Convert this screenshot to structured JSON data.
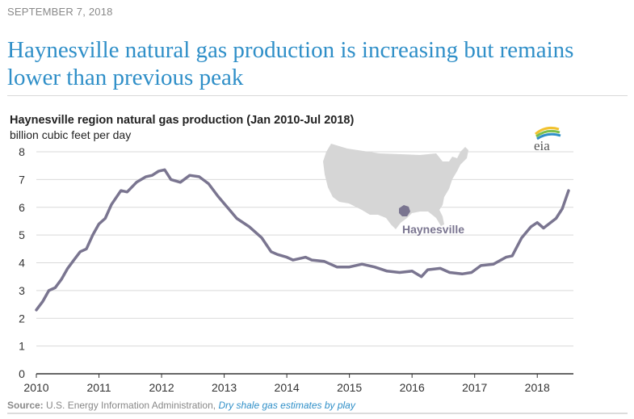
{
  "article": {
    "date": "SEPTEMBER 7, 2018",
    "headline": "Haynesville natural gas production is increasing but remains lower than previous peak"
  },
  "logo": {
    "text": "eia"
  },
  "map": {
    "label": "Haynesville",
    "region_color": "#7a7590",
    "us_color": "#d6d6d6"
  },
  "source": {
    "label": "Source:",
    "text": " U.S. Energy Information Administration, ",
    "link_text": "Dry shale gas estimates by play"
  },
  "colors": {
    "line": "#7a7590",
    "grid": "#d9d9d9",
    "headline": "#2f8fc8"
  },
  "chart_data": {
    "type": "line",
    "title": "Haynesville region natural gas production (Jan 2010-Jul 2018)",
    "ylabel": "billion cubic feet per day",
    "xlabel": "",
    "ylim": [
      0,
      8
    ],
    "xlim": [
      2010,
      2018.5
    ],
    "yticks": [
      "0",
      "1",
      "2",
      "3",
      "4",
      "5",
      "6",
      "7",
      "8"
    ],
    "xticks": [
      "2010",
      "2011",
      "2012",
      "2013",
      "2014",
      "2015",
      "2016",
      "2017",
      "2018"
    ],
    "grid": true,
    "series": [
      {
        "name": "Haynesville",
        "x": [
          2010.0,
          2010.1,
          2010.2,
          2010.3,
          2010.4,
          2010.5,
          2010.6,
          2010.7,
          2010.8,
          2010.9,
          2011.0,
          2011.1,
          2011.2,
          2011.35,
          2011.45,
          2011.6,
          2011.75,
          2011.85,
          2011.95,
          2012.05,
          2012.15,
          2012.3,
          2012.45,
          2012.6,
          2012.75,
          2012.9,
          2013.05,
          2013.2,
          2013.4,
          2013.6,
          2013.75,
          2013.85,
          2014.0,
          2014.1,
          2014.3,
          2014.4,
          2014.6,
          2014.8,
          2015.0,
          2015.2,
          2015.4,
          2015.6,
          2015.8,
          2016.0,
          2016.15,
          2016.25,
          2016.45,
          2016.6,
          2016.8,
          2016.95,
          2017.1,
          2017.3,
          2017.5,
          2017.6,
          2017.75,
          2017.9,
          2018.0,
          2018.1,
          2018.3,
          2018.4,
          2018.5
        ],
        "values": [
          2.3,
          2.6,
          3.0,
          3.1,
          3.4,
          3.8,
          4.1,
          4.4,
          4.5,
          5.0,
          5.4,
          5.6,
          6.1,
          6.6,
          6.55,
          6.9,
          7.1,
          7.15,
          7.3,
          7.35,
          7.0,
          6.9,
          7.15,
          7.1,
          6.85,
          6.4,
          6.0,
          5.6,
          5.3,
          4.9,
          4.4,
          4.3,
          4.2,
          4.1,
          4.2,
          4.1,
          4.05,
          3.85,
          3.85,
          3.95,
          3.85,
          3.7,
          3.65,
          3.7,
          3.5,
          3.75,
          3.8,
          3.65,
          3.6,
          3.65,
          3.9,
          3.95,
          4.2,
          4.25,
          4.9,
          5.3,
          5.45,
          5.25,
          5.6,
          5.95,
          6.6
        ]
      }
    ]
  }
}
